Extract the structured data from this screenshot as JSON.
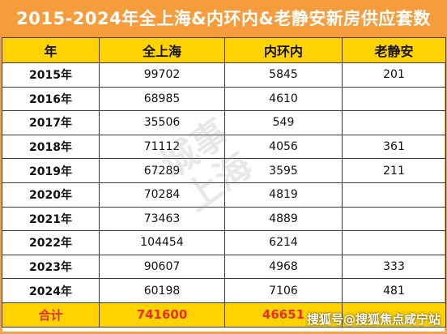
{
  "title": "2015-2024年全上海&内环内&老静安新房供应套数",
  "headers": [
    "年",
    "全上海",
    "内环内",
    "老静安"
  ],
  "rows": [
    {
      "year": "2015年",
      "shanghai": "99702",
      "inner_ring": "5845",
      "jingan": "201"
    },
    {
      "year": "2016年",
      "shanghai": "68985",
      "inner_ring": "4610",
      "jingan": ""
    },
    {
      "year": "2017年",
      "shanghai": "35506",
      "inner_ring": "549",
      "jingan": ""
    },
    {
      "year": "2018年",
      "shanghai": "71112",
      "inner_ring": "4056",
      "jingan": "361"
    },
    {
      "year": "2019年",
      "shanghai": "67289",
      "inner_ring": "3595",
      "jingan": "211"
    },
    {
      "year": "2020年",
      "shanghai": "70284",
      "inner_ring": "4819",
      "jingan": ""
    },
    {
      "year": "2021年",
      "shanghai": "73463",
      "inner_ring": "4889",
      "jingan": ""
    },
    {
      "year": "2022年",
      "shanghai": "104454",
      "inner_ring": "6214",
      "jingan": ""
    },
    {
      "year": "2023年",
      "shanghai": "90607",
      "inner_ring": "4968",
      "jingan": "333"
    },
    {
      "year": "2024年",
      "shanghai": "60198",
      "inner_ring": "7106",
      "jingan": "481"
    }
  ],
  "total": {
    "label": "合计",
    "shanghai": "741600",
    "inner_ring": "46651",
    "jingan": ""
  },
  "watermark_text": "城事上海",
  "source_watermark": "搜狐号@搜狐焦点咸宁站",
  "colors": {
    "title_bg": "#f59d3c",
    "header_bg": "#ffd200",
    "total_text": "#e5301e"
  }
}
